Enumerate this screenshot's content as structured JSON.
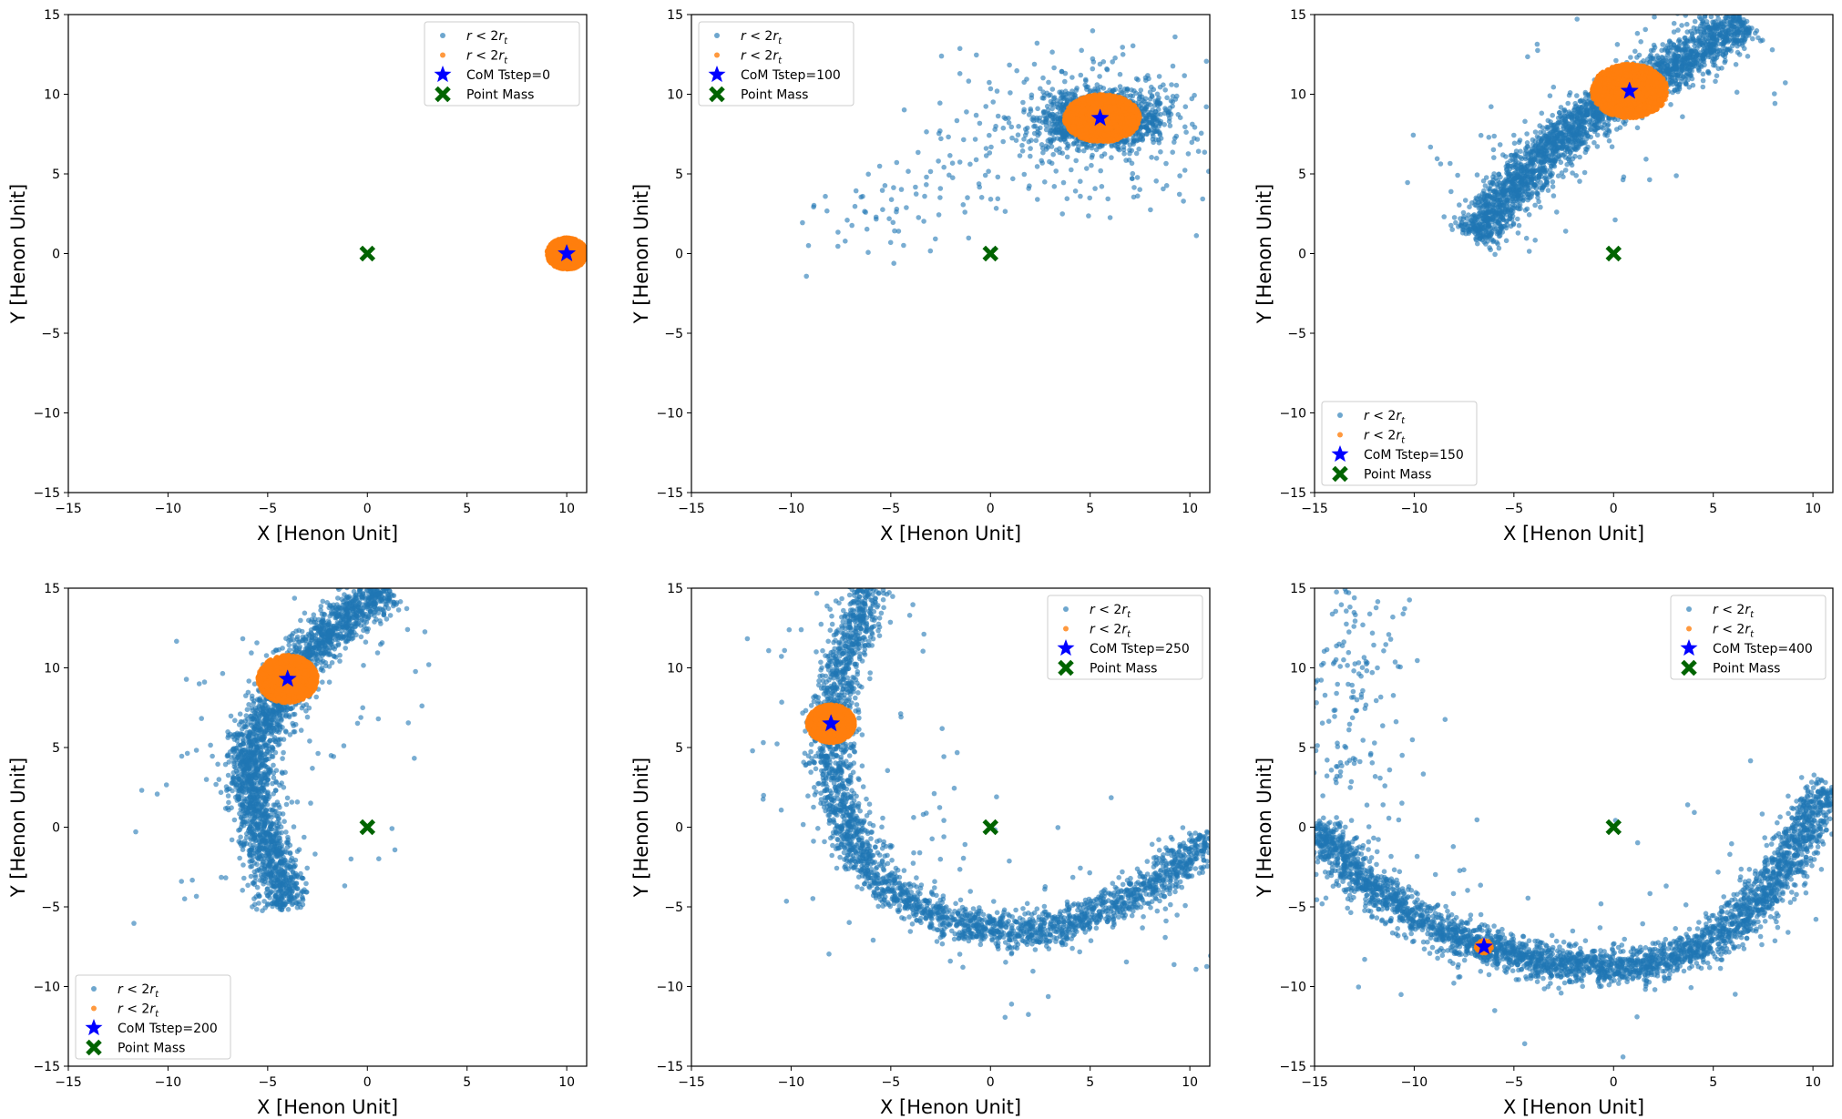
{
  "chart_data": [
    {
      "type": "scatter",
      "xlabel": "X [Henon Unit]",
      "ylabel": "Y [Henon Unit]",
      "xlim": [
        -15,
        11
      ],
      "ylim": [
        -15,
        15
      ],
      "xticks": [
        -15,
        -10,
        -5,
        0,
        5,
        10
      ],
      "yticks": [
        -15,
        -10,
        -5,
        0,
        5,
        10,
        15
      ],
      "legend_location": "upper right",
      "legend": [
        "r < 2r_t",
        "r < 2r_t",
        "CoM Tstep=0",
        "Point Mass"
      ],
      "com": {
        "name": "CoM Tstep=0",
        "x": 10.0,
        "y": 0.0
      },
      "point_mass": {
        "name": "Point Mass",
        "x": 0,
        "y": 0
      },
      "series": [
        {
          "name": "r < 2r_t",
          "color": "#1f77b4",
          "distribution": "clump",
          "center": [
            10.0,
            0.0
          ],
          "extent": [
            0.9,
            0.9
          ],
          "count": 60
        },
        {
          "name": "r < 2r_t",
          "color": "#ff7f0e",
          "distribution": "clump",
          "center": [
            10.0,
            0.0
          ],
          "extent": [
            1.0,
            1.0
          ],
          "count": 2200
        }
      ]
    },
    {
      "type": "scatter",
      "xlabel": "X [Henon Unit]",
      "ylabel": "Y [Henon Unit]",
      "xlim": [
        -15,
        11
      ],
      "ylim": [
        -15,
        15
      ],
      "xticks": [
        -15,
        -10,
        -5,
        0,
        5,
        10
      ],
      "yticks": [
        -15,
        -10,
        -5,
        0,
        5,
        10,
        15
      ],
      "legend_location": "upper left",
      "legend": [
        "r < 2r_t",
        "r < 2r_t",
        "CoM Tstep=100",
        "Point Mass"
      ],
      "com": {
        "name": "CoM Tstep=100",
        "x": 5.5,
        "y": 8.5
      },
      "point_mass": {
        "name": "Point Mass",
        "x": 0,
        "y": 0
      },
      "series": [
        {
          "name": "r < 2r_t",
          "color": "#1f77b4",
          "distribution": "cloud",
          "center": [
            5.6,
            8.4
          ],
          "extent": [
            2.4,
            1.4
          ],
          "count": 1500,
          "tail": {
            "from": [
              5.6,
              8.4
            ],
            "to": [
              -8.5,
              1.0
            ],
            "width": 1.6,
            "count": 120
          }
        },
        {
          "name": "r < 2r_t",
          "color": "#ff7f0e",
          "distribution": "clump",
          "center": [
            5.6,
            8.5
          ],
          "extent": [
            1.9,
            1.5
          ],
          "count": 2200
        }
      ]
    },
    {
      "type": "scatter",
      "xlabel": "X [Henon Unit]",
      "ylabel": "Y [Henon Unit]",
      "xlim": [
        -15,
        11
      ],
      "ylim": [
        -15,
        15
      ],
      "xticks": [
        -15,
        -10,
        -5,
        0,
        5,
        10
      ],
      "yticks": [
        -15,
        -10,
        -5,
        0,
        5,
        10,
        15
      ],
      "legend_location": "lower left",
      "legend": [
        "r < 2r_t",
        "r < 2r_t",
        "CoM Tstep=150",
        "Point Mass"
      ],
      "com": {
        "name": "CoM Tstep=150",
        "x": 0.8,
        "y": 10.2
      },
      "point_mass": {
        "name": "Point Mass",
        "x": 0,
        "y": 0
      },
      "series": [
        {
          "name": "r < 2r_t",
          "color": "#1f77b4",
          "distribution": "arc",
          "path": [
            [
              -7,
              1
            ],
            [
              -4.5,
              5
            ],
            [
              -2.2,
              7.8
            ],
            [
              0.8,
              10.2
            ],
            [
              3.6,
              12.2
            ],
            [
              6.5,
              14.6
            ]
          ],
          "width": 1.2,
          "count": 2600,
          "scatter": 70
        },
        {
          "name": "r < 2r_t",
          "color": "#ff7f0e",
          "distribution": "clump",
          "center": [
            0.8,
            10.2
          ],
          "extent": [
            1.9,
            1.7
          ],
          "count": 2200
        }
      ]
    },
    {
      "type": "scatter",
      "xlabel": "X [Henon Unit]",
      "ylabel": "Y [Henon Unit]",
      "xlim": [
        -15,
        11
      ],
      "ylim": [
        -15,
        15
      ],
      "xticks": [
        -15,
        -10,
        -5,
        0,
        5,
        10
      ],
      "yticks": [
        -15,
        -10,
        -5,
        0,
        5,
        10,
        15
      ],
      "legend_location": "lower left",
      "legend": [
        "r < 2r_t",
        "r < 2r_t",
        "CoM Tstep=200",
        "Point Mass"
      ],
      "com": {
        "name": "CoM Tstep=200",
        "x": -4.0,
        "y": 9.3
      },
      "point_mass": {
        "name": "Point Mass",
        "x": 0,
        "y": 0
      },
      "series": [
        {
          "name": "r < 2r_t",
          "color": "#1f77b4",
          "distribution": "arc",
          "path": [
            [
              -4,
              -5
            ],
            [
              -5.3,
              0
            ],
            [
              -6,
              3.5
            ],
            [
              -5.2,
              6.5
            ],
            [
              -4,
              9.3
            ],
            [
              -2.5,
              11.5
            ],
            [
              -0.8,
              13.5
            ],
            [
              1,
              15
            ]
          ],
          "width": 1.1,
          "count": 2600,
          "scatter": 110
        },
        {
          "name": "r < 2r_t",
          "color": "#ff7f0e",
          "distribution": "clump",
          "center": [
            -4.0,
            9.3
          ],
          "extent": [
            1.5,
            1.5
          ],
          "count": 2200
        }
      ]
    },
    {
      "type": "scatter",
      "xlabel": "X [Henon Unit]",
      "ylabel": "Y [Henon Unit]",
      "xlim": [
        -15,
        11
      ],
      "ylim": [
        -15,
        15
      ],
      "xticks": [
        -15,
        -10,
        -5,
        0,
        5,
        10
      ],
      "yticks": [
        -15,
        -10,
        -5,
        0,
        5,
        10,
        15
      ],
      "legend_location": "upper right",
      "legend": [
        "r < 2r_t",
        "r < 2r_t",
        "CoM Tstep=250",
        "Point Mass"
      ],
      "com": {
        "name": "CoM Tstep=250",
        "x": -8.0,
        "y": 6.5
      },
      "point_mass": {
        "name": "Point Mass",
        "x": 0,
        "y": 0
      },
      "series": [
        {
          "name": "r < 2r_t",
          "color": "#1f77b4",
          "distribution": "arc",
          "path": [
            [
              -6,
              15
            ],
            [
              -6.8,
              12.5
            ],
            [
              -7.6,
              9.5
            ],
            [
              -8,
              6.5
            ],
            [
              -8,
              3
            ],
            [
              -7.2,
              0
            ],
            [
              -5.5,
              -3.5
            ],
            [
              -3,
              -5.5
            ],
            [
              0,
              -6.5
            ],
            [
              3,
              -6.5
            ],
            [
              6,
              -5
            ],
            [
              9,
              -3
            ],
            [
              11,
              -0.5
            ]
          ],
          "width": 1.0,
          "count": 2700,
          "scatter": 130
        },
        {
          "name": "r < 2r_t",
          "color": "#ff7f0e",
          "distribution": "clump",
          "center": [
            -8.0,
            6.5
          ],
          "extent": [
            1.2,
            1.2
          ],
          "count": 2000
        }
      ]
    },
    {
      "type": "scatter",
      "xlabel": "X [Henon Unit]",
      "ylabel": "Y [Henon Unit]",
      "xlim": [
        -15,
        11
      ],
      "ylim": [
        -15,
        15
      ],
      "xticks": [
        -15,
        -10,
        -5,
        0,
        5,
        10
      ],
      "yticks": [
        -15,
        -10,
        -5,
        0,
        5,
        10,
        15
      ],
      "legend_location": "upper right",
      "legend": [
        "r < 2r_t",
        "r < 2r_t",
        "CoM Tstep=400",
        "Point Mass"
      ],
      "com": {
        "name": "CoM Tstep=400",
        "x": -6.5,
        "y": -7.5
      },
      "point_mass": {
        "name": "Point Mass",
        "x": 0,
        "y": 0
      },
      "series": [
        {
          "name": "r < 2r_t",
          "color": "#1f77b4",
          "distribution": "arc",
          "path": [
            [
              -15,
              0
            ],
            [
              -12,
              -4
            ],
            [
              -9,
              -6.3
            ],
            [
              -6.5,
              -7.5
            ],
            [
              -4,
              -8.3
            ],
            [
              -1,
              -8.8
            ],
            [
              2,
              -8.6
            ],
            [
              5,
              -7.2
            ],
            [
              7.5,
              -4.5
            ],
            [
              9,
              -1.5
            ],
            [
              10,
              1
            ],
            [
              11,
              2.5
            ]
          ],
          "width": 1.0,
          "count": 3200,
          "scatter": 130,
          "tail": {
            "from": [
              -14,
              2
            ],
            "to": [
              -12.5,
              14.5
            ],
            "width": 1.5,
            "count": 160
          }
        },
        {
          "name": "r < 2r_t",
          "color": "#ff7f0e",
          "distribution": "clump",
          "center": [
            -6.5,
            -7.5
          ],
          "extent": [
            0.4,
            0.4
          ],
          "count": 150
        }
      ]
    }
  ]
}
